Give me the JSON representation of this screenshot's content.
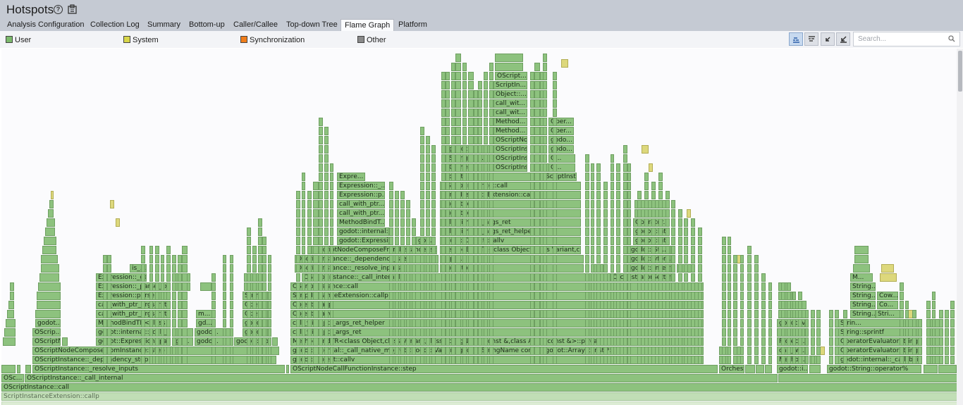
{
  "app": {
    "title": "Hotspots"
  },
  "tabs": [
    {
      "label": "Analysis Configuration"
    },
    {
      "label": "Collection Log"
    },
    {
      "label": "Summary"
    },
    {
      "label": "Bottom-up"
    },
    {
      "label": "Caller/Callee"
    },
    {
      "label": "Top-down Tree"
    },
    {
      "label": "Flame Graph",
      "active": true
    },
    {
      "label": "Platform"
    }
  ],
  "legend": [
    {
      "label": "User",
      "color": "#7cba6c"
    },
    {
      "label": "System",
      "color": "#d8d64a"
    },
    {
      "label": "Synchronization",
      "color": "#f07d1a"
    },
    {
      "label": "Other",
      "color": "#8a8a8a"
    }
  ],
  "toolbar": {
    "buttons": [
      {
        "name": "view-mode-button",
        "icon": "flame-up-icon"
      },
      {
        "name": "view-mode-alt-button",
        "icon": "flame-down-icon"
      },
      {
        "name": "zoom-back-button",
        "icon": "undo-zoom-icon"
      },
      {
        "name": "zoom-reset-button",
        "icon": "reset-zoom-icon"
      }
    ],
    "search_placeholder": "Search..."
  },
  "flame_frames": [
    "OSc...",
    "OScriptInstance::_call_internal",
    "OScriptInstance::call",
    "ScriptInstanceExtension::callp",
    "OScriptInstance::_resolve_inputs",
    "OScriptInstance::_dependency_step",
    "OScriptNodeComposeFromInstance::step",
    "OScriptNod...",
    "OScrip...",
    "godot...",
    "godot::Expression::parse",
    "go...",
    "godo...",
    "godot::vfor...",
    "godot::internal::_call_na...",
    "godo...",
    "godot...",
    "MethodBindTR<class E...",
    "gd...",
    "Oper...",
    "m...",
    "call_with_ptr_args_ret",
    "call_with_ptr_args_ret_...",
    "Expression::parse",
    "Strin...",
    "Expression::_parse_ex...",
    "Expression::_get...",
    "is_...",
    "OScriptNodeCallFunctionInstance::step",
    "godot::Object::callv",
    "godot::internal::_call_native_mb_ret<godot::Variant,godot::StringName const *,godot::Array const *>",
    "MethodBindTR<class Object,class Variant,class StringName const &,class Array const &>::ptrcall",
    "call_with_ptr_args_ret",
    "call_with_ptr_args_ret_helper",
    "Object::callv",
    "Object::callp",
    "ScriptInstanceExtension::callp",
    "OScriptInstance::call",
    "OScriptInstance::_call_internal",
    "OrchestratorSettin...",
    "OScriptInstance::_resolve_inputs",
    "OScriptInstance::_dependency_step",
    "OScriptNodeComposeFromInstance::step",
    "godot::Expressi...",
    "god...",
    "godot::internal::...",
    "MethodBindT...",
    "call_with_ptr...",
    "Expression::p...",
    "Expression::_...",
    "Expre...",
    "godot::Object::callv",
    "MethodBindTR<class Object,class Variant,clas...",
    "godot::internal::_call_native_mb_ret<godot::Var...",
    "godot::vfor...",
    "godot::Str...",
    "godot::int...",
    "Operator...",
    "String::sp...",
    "OScriptInsta...",
    "godot::...",
    "OScriptInstance::_call_internal",
    "Orchestr...",
    "OScriptInsta...",
    "godot::i...",
    "OScriptNod...",
    "Method...",
    "call_wit...",
    "Object::...",
    "ScriptIn...",
    "OScript...",
    "O...",
    "godo...",
    "Oper...",
    "Strin...",
    "OScri...",
    "OrchestratorSettings::get_setting",
    "godot::...",
    "godot::i...",
    "Method...",
    "call_wit...",
    "Project...",
    "godot::vformat<class godot::St...",
    "godot::String::operator%",
    "godot::internal::_call_built...",
    "OperatorEvaluatorStringF...",
    "OperatorEvaluatorString...",
    "String::sprintf",
    "Strin...",
    "String...",
    "Stri...",
    "Co...",
    "Cow...",
    "M..."
  ]
}
